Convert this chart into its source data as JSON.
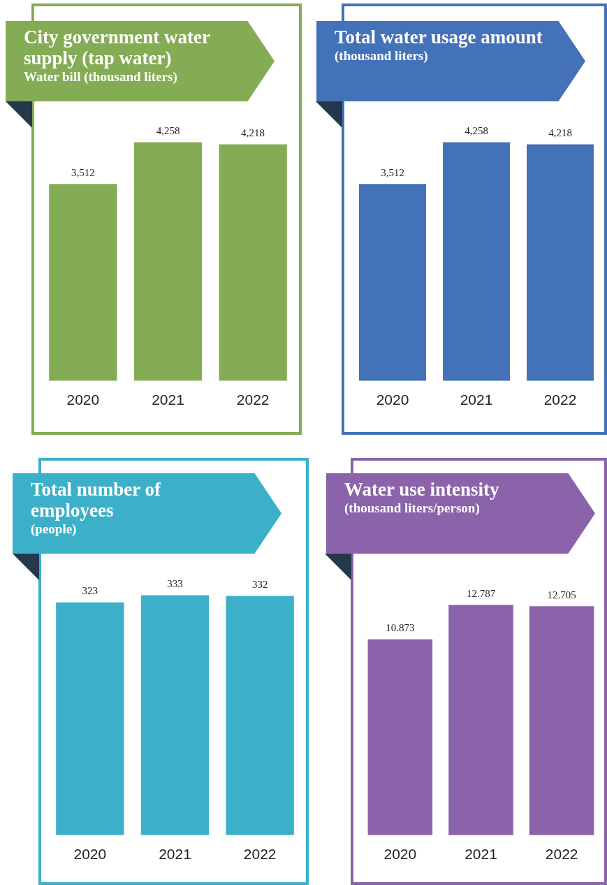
{
  "chart_data": [
    {
      "type": "bar",
      "title": "City government water supply (tap water)",
      "subtitle": "Water bill (thousand liters)",
      "categories": [
        "2020",
        "2021",
        "2022"
      ],
      "series": [
        {
          "color": "#84ac55",
          "values": [
            3512,
            4258,
            4218
          ],
          "value_labels": [
            "3,512",
            "4,258",
            "4,218"
          ]
        }
      ]
    },
    {
      "type": "bar",
      "title": "Total water usage amount",
      "subtitle": "(thousand liters)",
      "categories": [
        "2020",
        "2021",
        "2022"
      ],
      "series": [
        {
          "color": "#4472b8",
          "values": [
            3512,
            4258,
            4218
          ],
          "value_labels": [
            "3,512",
            "4,258",
            "4,218"
          ]
        }
      ]
    },
    {
      "type": "bar",
      "title": "Total number of employees",
      "subtitle": "(people)",
      "categories": [
        "2020",
        "2021",
        "2022"
      ],
      "series": [
        {
          "color": "#3cb0c9",
          "values": [
            323,
            333,
            332
          ],
          "value_labels": [
            "323",
            "333",
            "332"
          ]
        }
      ]
    },
    {
      "type": "bar",
      "title": "Water use intensity",
      "subtitle": "(thousand liters/person)",
      "categories": [
        "2020",
        "2021",
        "2022"
      ],
      "series": [
        {
          "color": "#8a63aa",
          "values": [
            10.873,
            12.787,
            12.705
          ],
          "value_labels": [
            "10.873",
            "12.787",
            "12.705"
          ]
        }
      ]
    }
  ]
}
